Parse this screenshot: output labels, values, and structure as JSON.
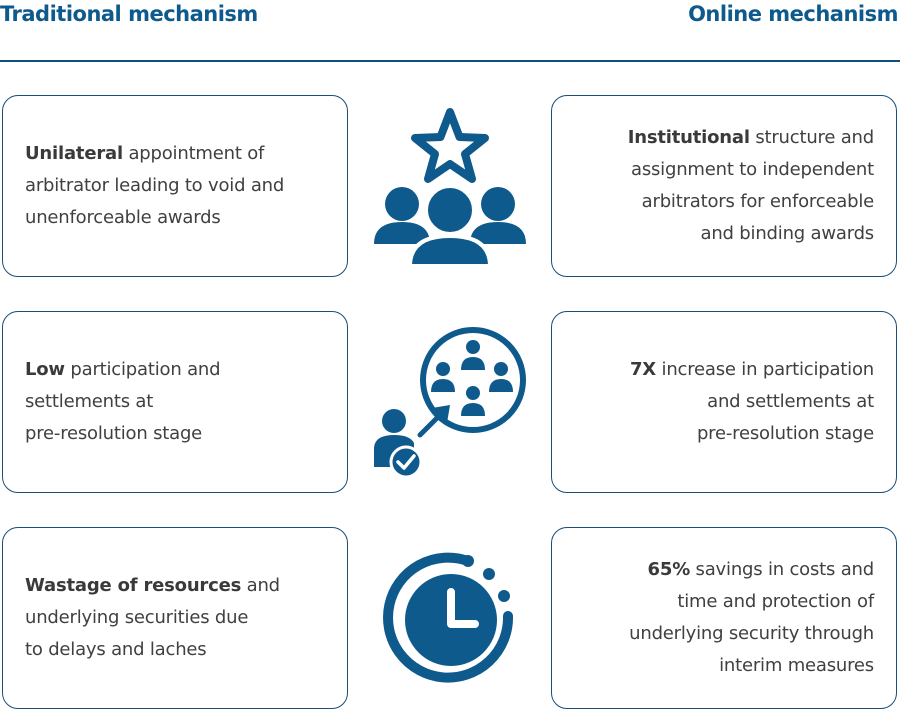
{
  "header": {
    "left_title": "Traditional mechanism",
    "right_title": "Online mechanism"
  },
  "colors": {
    "accent": "#0f5a8c",
    "border": "#1a4e78",
    "text": "#404040"
  },
  "rows": [
    {
      "icon": "people-star-icon",
      "traditional": {
        "lines": [
          {
            "bold": "Unilateral",
            "text": " appointment of"
          },
          {
            "bold": "",
            "text": "arbitrator leading to void and"
          },
          {
            "bold": "",
            "text": "unenforceable awards"
          }
        ]
      },
      "online": {
        "lines": [
          {
            "bold": "Institutional",
            "text": " structure and"
          },
          {
            "bold": "",
            "text": "assignment to independent"
          },
          {
            "bold": "",
            "text": "arbitrators for enforceable"
          },
          {
            "bold": "",
            "text": "and binding awards"
          }
        ]
      }
    },
    {
      "icon": "participation-network-icon",
      "traditional": {
        "lines": [
          {
            "bold": "Low",
            "text": " participation and"
          },
          {
            "bold": "",
            "text": "settlements at"
          },
          {
            "bold": "",
            "text": "pre-resolution stage"
          }
        ]
      },
      "online": {
        "lines": [
          {
            "bold": "7X",
            "text": " increase in participation"
          },
          {
            "bold": "",
            "text": "and settlements at"
          },
          {
            "bold": "",
            "text": "pre-resolution stage"
          }
        ]
      }
    },
    {
      "icon": "stopwatch-clock-icon",
      "traditional": {
        "lines": [
          {
            "bold": "Wastage of resources",
            "text": " and"
          },
          {
            "bold": "",
            "text": "underlying securities due"
          },
          {
            "bold": "",
            "text": "to delays and laches"
          }
        ]
      },
      "online": {
        "lines": [
          {
            "bold": "65%",
            "text": " savings in costs and"
          },
          {
            "bold": "",
            "text": "time and protection of"
          },
          {
            "bold": "",
            "text": "underlying security through"
          },
          {
            "bold": "",
            "text": "interim measures"
          }
        ]
      }
    }
  ]
}
